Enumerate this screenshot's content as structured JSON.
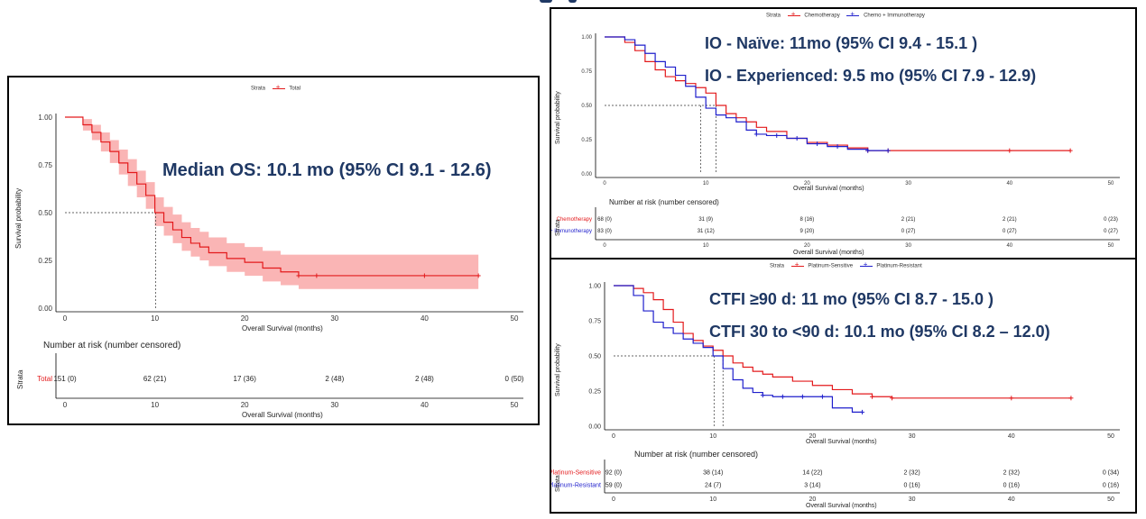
{
  "colors": {
    "red": "#e31a1c",
    "blue": "#1f1fcc",
    "band": "#f9a3a3",
    "annot": "#1f3864"
  },
  "chart_data": [
    {
      "type": "line",
      "chart_kind": "kaplan-meier",
      "legend_title": "Strata",
      "xlabel": "Overall Survival (months)",
      "ylabel": "Survival probability",
      "xlim": [
        0,
        50
      ],
      "ylim": [
        0,
        1
      ],
      "xticks": [
        0,
        10,
        20,
        30,
        40,
        50
      ],
      "yticks": [
        "0.00",
        "0.25",
        "0.50",
        "0.75",
        "1.00"
      ],
      "grid": false,
      "legend_position": "top",
      "annotations": [
        "Median OS: 10.1 mo (95% CI 9.1 - 12.6)"
      ],
      "median_x": [
        10.1
      ],
      "series": [
        {
          "name": "Total",
          "color": "#e31a1c",
          "x": [
            0,
            2,
            3,
            4,
            5,
            6,
            7,
            8,
            9,
            10,
            11,
            12,
            13,
            14,
            15,
            16,
            18,
            20,
            22,
            24,
            26,
            28,
            40,
            46
          ],
          "y": [
            1.0,
            0.96,
            0.92,
            0.87,
            0.82,
            0.76,
            0.71,
            0.65,
            0.59,
            0.5,
            0.45,
            0.41,
            0.37,
            0.34,
            0.32,
            0.29,
            0.26,
            0.24,
            0.21,
            0.19,
            0.17,
            0.17,
            0.17,
            0.17
          ],
          "ci_low": [
            1.0,
            0.93,
            0.88,
            0.82,
            0.76,
            0.7,
            0.64,
            0.58,
            0.52,
            0.43,
            0.38,
            0.34,
            0.3,
            0.27,
            0.25,
            0.22,
            0.19,
            0.17,
            0.14,
            0.12,
            0.1,
            0.1,
            0.1,
            0.1
          ],
          "ci_high": [
            1.0,
            0.99,
            0.96,
            0.92,
            0.88,
            0.83,
            0.78,
            0.72,
            0.66,
            0.58,
            0.53,
            0.49,
            0.45,
            0.42,
            0.4,
            0.37,
            0.34,
            0.32,
            0.3,
            0.28,
            0.28,
            0.28,
            0.28,
            0.28
          ],
          "censor_x": [
            26,
            28,
            40,
            46
          ]
        }
      ],
      "risk_table": {
        "title": "Number at risk (number censored)",
        "strata_label": "Strata",
        "rows": [
          {
            "label": "Total",
            "color": "#e31a1c",
            "values": [
              "151 (0)",
              "62 (21)",
              "17 (36)",
              "2 (48)",
              "2 (48)",
              "0 (50)"
            ]
          }
        ]
      }
    },
    {
      "type": "line",
      "chart_kind": "kaplan-meier",
      "legend_title": "Strata",
      "xlabel": "Overall Survival (months)",
      "ylabel": "Survival probability",
      "xlim": [
        0,
        50
      ],
      "ylim": [
        0,
        1
      ],
      "xticks": [
        0,
        10,
        20,
        30,
        40,
        50
      ],
      "yticks": [
        "0.00",
        "0.25",
        "0.50",
        "0.75",
        "1.00"
      ],
      "grid": false,
      "legend_position": "top",
      "annotations": [
        "IO - Naïve: 11mo (95% CI 9.4 - 15.1 )",
        "IO - Experienced: 9.5 mo (95% CI 7.9 - 12.9)"
      ],
      "median_x": [
        9.5,
        11
      ],
      "series": [
        {
          "name": "Chemotherapy",
          "color": "#e31a1c",
          "x": [
            0,
            2,
            3,
            4,
            5,
            6,
            7,
            8,
            9,
            10,
            11,
            12,
            13,
            14,
            15,
            16,
            18,
            20,
            22,
            24,
            26,
            28,
            40,
            46
          ],
          "y": [
            1.0,
            0.96,
            0.9,
            0.82,
            0.76,
            0.71,
            0.68,
            0.66,
            0.63,
            0.59,
            0.5,
            0.44,
            0.41,
            0.38,
            0.34,
            0.31,
            0.26,
            0.23,
            0.21,
            0.19,
            0.17,
            0.17,
            0.17,
            0.17
          ],
          "censor_x": [
            26,
            28,
            40,
            46
          ]
        },
        {
          "name": "Chemo + Immunotherapy",
          "color": "#1f1fcc",
          "x": [
            0,
            2,
            3,
            4,
            5,
            6,
            7,
            8,
            9,
            10,
            11,
            12,
            13,
            14,
            15,
            16,
            18,
            20,
            22,
            24,
            26,
            28
          ],
          "y": [
            1.0,
            0.98,
            0.94,
            0.88,
            0.82,
            0.78,
            0.72,
            0.64,
            0.56,
            0.48,
            0.43,
            0.41,
            0.38,
            0.32,
            0.29,
            0.28,
            0.26,
            0.22,
            0.2,
            0.18,
            0.17,
            0.17
          ],
          "censor_x": [
            15,
            17,
            19,
            21,
            23,
            26,
            28
          ]
        }
      ],
      "risk_table": {
        "title": "Number at risk (number censored)",
        "strata_label": "Strata",
        "rows": [
          {
            "label": "Chemotherapy",
            "color": "#e31a1c",
            "values": [
              "68 (0)",
              "31 (9)",
              "8 (16)",
              "2 (21)",
              "2 (21)",
              "0 (23)"
            ]
          },
          {
            "label": "Chemo + Immunotherapy",
            "color": "#1f1fcc",
            "values": [
              "83 (0)",
              "31 (12)",
              "9 (20)",
              "0 (27)",
              "0 (27)",
              "0 (27)"
            ]
          }
        ]
      }
    },
    {
      "type": "line",
      "chart_kind": "kaplan-meier",
      "legend_title": "Strata",
      "xlabel": "Overall Survival (months)",
      "ylabel": "Survival probability",
      "xlim": [
        0,
        50
      ],
      "ylim": [
        0,
        1
      ],
      "xticks": [
        0,
        10,
        20,
        30,
        40,
        50
      ],
      "yticks": [
        "0.00",
        "0.25",
        "0.50",
        "0.75",
        "1.00"
      ],
      "grid": false,
      "legend_position": "top",
      "annotations": [
        "CTFI ≥90 d: 11 mo (95% CI 8.7 - 15.0 )",
        "CTFI 30 to <90 d: 10.1 mo (95% CI 8.2 – 12.0)"
      ],
      "median_x": [
        10.1,
        11
      ],
      "series": [
        {
          "name": "Platinum-Sensitive",
          "color": "#e31a1c",
          "x": [
            0,
            2,
            3,
            4,
            5,
            6,
            7,
            8,
            9,
            10,
            11,
            12,
            13,
            14,
            15,
            16,
            18,
            20,
            22,
            24,
            26,
            28,
            40,
            46
          ],
          "y": [
            1.0,
            0.98,
            0.95,
            0.9,
            0.83,
            0.74,
            0.66,
            0.61,
            0.57,
            0.54,
            0.5,
            0.45,
            0.42,
            0.39,
            0.37,
            0.35,
            0.32,
            0.29,
            0.26,
            0.23,
            0.21,
            0.2,
            0.2,
            0.2
          ],
          "censor_x": [
            26,
            28,
            40,
            46
          ]
        },
        {
          "name": "Platinum-Resistant",
          "color": "#1f1fcc",
          "x": [
            0,
            2,
            3,
            4,
            5,
            6,
            7,
            8,
            9,
            10,
            11,
            12,
            13,
            14,
            15,
            16,
            18,
            20,
            22,
            24,
            25
          ],
          "y": [
            1.0,
            0.93,
            0.82,
            0.74,
            0.7,
            0.66,
            0.62,
            0.59,
            0.56,
            0.5,
            0.41,
            0.33,
            0.27,
            0.24,
            0.22,
            0.21,
            0.21,
            0.21,
            0.13,
            0.1,
            0.1
          ],
          "censor_x": [
            15,
            17,
            19,
            21,
            25
          ]
        }
      ],
      "risk_table": {
        "title": "Number at risk (number censored)",
        "strata_label": "Strata",
        "rows": [
          {
            "label": "Platinum-Sensitive",
            "color": "#e31a1c",
            "values": [
              "92 (0)",
              "38 (14)",
              "14 (22)",
              "2 (32)",
              "2 (32)",
              "0 (34)"
            ]
          },
          {
            "label": "Platinum-Resistant",
            "color": "#1f1fcc",
            "values": [
              "59 (0)",
              "24 (7)",
              "3 (14)",
              "0 (16)",
              "0 (16)",
              "0 (16)"
            ]
          }
        ]
      }
    }
  ]
}
